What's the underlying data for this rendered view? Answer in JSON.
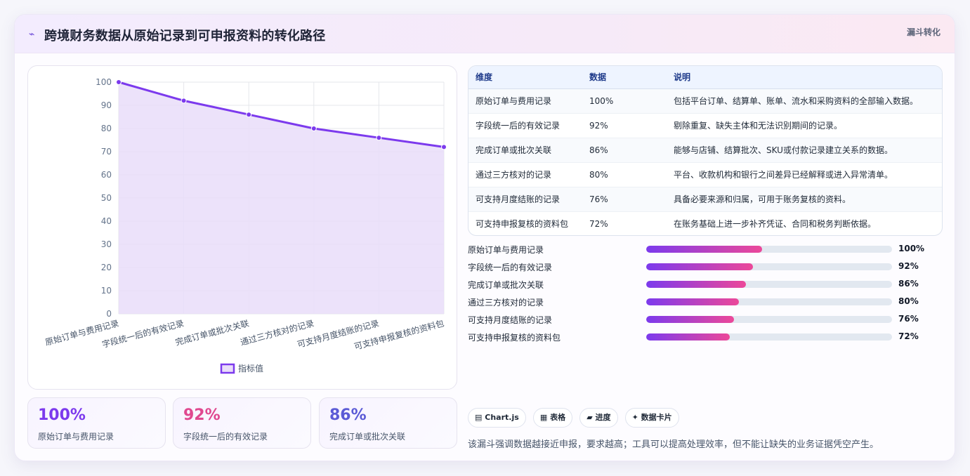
{
  "header": {
    "logo_glyph": "⌁",
    "title": "跨境财务数据从原始记录到可申报资料的转化路径",
    "tag": "漏斗转化"
  },
  "chart_data": {
    "type": "area",
    "categories": [
      "原始订单与费用记录",
      "字段统一后的有效记录",
      "完成订单或批次关联",
      "通过三方核对的记录",
      "可支持月度结账的记录",
      "可支持申报复核的资料包"
    ],
    "series": [
      {
        "name": "指标值",
        "values": [
          100,
          92,
          86,
          80,
          76,
          72
        ]
      }
    ],
    "ylim": [
      0,
      100
    ],
    "yticks": [
      0,
      10,
      20,
      30,
      40,
      50,
      60,
      70,
      80,
      90,
      100
    ],
    "grid": true,
    "legend": "bottom",
    "colors": {
      "line": "#7c3aed",
      "fill": "#e9ddf9"
    }
  },
  "stats": [
    {
      "value": "100%",
      "label": "原始订单与费用记录",
      "color": "#7c3aed"
    },
    {
      "value": "92%",
      "label": "字段统一后的有效记录",
      "color": "#e0488f"
    },
    {
      "value": "86%",
      "label": "完成订单或批次关联",
      "color": "#5b5bd6"
    }
  ],
  "table": {
    "headers": [
      "维度",
      "数据",
      "说明"
    ],
    "rows": [
      [
        "原始订单与费用记录",
        "100%",
        "包括平台订单、结算单、账单、流水和采购资料的全部输入数据。"
      ],
      [
        "字段统一后的有效记录",
        "92%",
        "剔除重复、缺失主体和无法识别期间的记录。"
      ],
      [
        "完成订单或批次关联",
        "86%",
        "能够与店铺、结算批次、SKU或付款记录建立关系的数据。"
      ],
      [
        "通过三方核对的记录",
        "80%",
        "平台、收款机构和银行之间差异已经解释或进入异常清单。"
      ],
      [
        "可支持月度结账的记录",
        "76%",
        "具备必要来源和归属，可用于账务复核的资料。"
      ],
      [
        "可支持申报复核的资料包",
        "72%",
        "在账务基础上进一步补齐凭证、合同和税务判断依据。"
      ]
    ]
  },
  "progress": [
    {
      "label": "原始订单与费用记录",
      "value": 100,
      "text": "100%"
    },
    {
      "label": "字段统一后的有效记录",
      "value": 92,
      "text": "92%"
    },
    {
      "label": "完成订单或批次关联",
      "value": 86,
      "text": "86%"
    },
    {
      "label": "通过三方核对的记录",
      "value": 80,
      "text": "80%"
    },
    {
      "label": "可支持月度结账的记录",
      "value": 76,
      "text": "76%"
    },
    {
      "label": "可支持申报复核的资料包",
      "value": 72,
      "text": "72%"
    }
  ],
  "progress_scale_max": 212,
  "chips": [
    {
      "icon": "▤",
      "label": "Chart.js"
    },
    {
      "icon": "▦",
      "label": "表格"
    },
    {
      "icon": "▰",
      "label": "进度"
    },
    {
      "icon": "✦",
      "label": "数据卡片"
    }
  ],
  "note": "该漏斗强调数据越接近申报，要求越高；工具可以提高处理效率，但不能让缺失的业务证据凭空产生。"
}
